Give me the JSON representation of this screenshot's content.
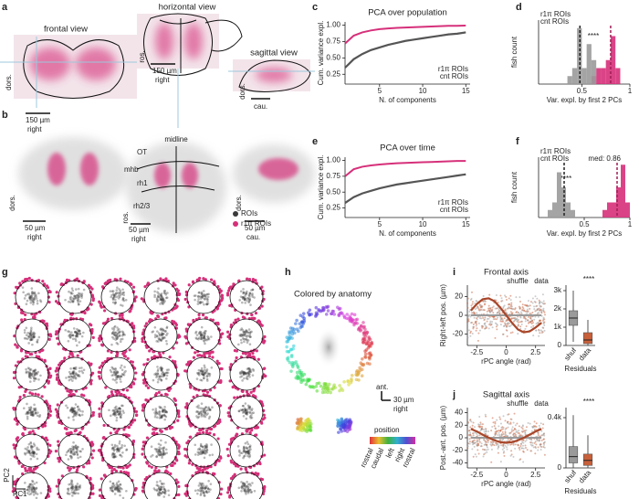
{
  "panel_letters": [
    "a",
    "b",
    "c",
    "d",
    "e",
    "f",
    "g",
    "h",
    "i",
    "j"
  ],
  "panel_a": {
    "frontal": {
      "title": "frontal view",
      "vertical": "dors.",
      "scale": "150 µm",
      "horizontal": "right"
    },
    "horizontal": {
      "title": "horizontal view",
      "vertical": "ros.",
      "scale": "150 µm",
      "horizontal": "right"
    },
    "sagittal": {
      "title": "sagittal view",
      "vertical": "dors.",
      "horizontal": "cau."
    }
  },
  "panel_b": {
    "frontal": {
      "vertical": "dors.",
      "scale": "50 µm",
      "horizontal": "right"
    },
    "horizontal": {
      "labels": [
        "OT",
        "midline",
        "mhb",
        "rh1",
        "rh2/3"
      ],
      "vertical": "ros.",
      "scale": "50 µm",
      "horizontal": "right"
    },
    "sagittal": {
      "vertical": "dors.",
      "scale": "50 µm",
      "horizontal": "cau."
    },
    "legend": [
      {
        "name": "ROIs",
        "color": "#3a3a3a"
      },
      {
        "name": "r1π ROIs",
        "color": "#d6307a"
      }
    ]
  },
  "panel_g": {
    "x_label": "PC1",
    "y_label": "PC2"
  },
  "panel_h": {
    "title": "Colored by anatomy",
    "vertical": "ant.",
    "scale": "30 µm",
    "horizontal": "right",
    "colorbar_title": "position",
    "colorbar_labels": [
      "rostral",
      "caudal",
      "left",
      "right",
      "rostral"
    ]
  },
  "chart_data": [
    {
      "type": "line",
      "title": "PCA over population",
      "xlabel": "N. of components",
      "ylabel": "Cum. variance expl.",
      "x": [
        1,
        2,
        3,
        4,
        5,
        6,
        7,
        8,
        9,
        10,
        11,
        12,
        13,
        14,
        15
      ],
      "xlim": [
        1,
        15.5
      ],
      "xticks": [
        5,
        10,
        15
      ],
      "ylim": [
        0.1,
        1.05
      ],
      "yticks": [
        {
          "value": 0.25,
          "label": "0.25"
        },
        {
          "value": 0.5,
          "label": "0.50"
        },
        {
          "value": 0.75,
          "label": "0.75"
        },
        {
          "value": 1,
          "label": "1.00"
        }
      ],
      "legend": "lower right",
      "series": [
        {
          "name": "r1π ROIs",
          "color": "#d6307a",
          "values": [
            0.72,
            0.84,
            0.89,
            0.92,
            0.94,
            0.95,
            0.96,
            0.965,
            0.97,
            0.975,
            0.98,
            0.985,
            0.99,
            0.99,
            0.995
          ]
        },
        {
          "name": "cnt ROIs",
          "color": "#555555",
          "values": [
            0.35,
            0.48,
            0.56,
            0.62,
            0.66,
            0.7,
            0.73,
            0.76,
            0.78,
            0.8,
            0.82,
            0.84,
            0.86,
            0.87,
            0.89
          ]
        }
      ]
    },
    {
      "type": "histogram",
      "xlabel": "Var. expl. by first 2 PCs",
      "ylabel": "fish count",
      "annotation": "****",
      "bins": [
        0.25,
        0.3,
        0.35,
        0.4,
        0.45,
        0.5,
        0.55,
        0.6,
        0.65,
        0.7,
        0.75,
        0.8,
        0.85,
        0.9,
        0.95
      ],
      "xlim": [
        0.05,
        1.0
      ],
      "xticks": [
        0.5,
        1
      ],
      "ylim": [
        0,
        8
      ],
      "legend": "upper left",
      "series": [
        {
          "name": "r1π ROIs",
          "color": "#d6307a",
          "median": 0.8,
          "values": [
            0,
            0,
            0,
            0,
            0,
            0,
            0,
            1,
            2,
            2,
            3,
            6,
            2,
            0
          ]
        },
        {
          "name": "cnt ROIs",
          "color": "#9a9a9a",
          "median": 0.48,
          "values": [
            0,
            0,
            1,
            2,
            7,
            2,
            5,
            3,
            0,
            0,
            0,
            0,
            0,
            0
          ]
        }
      ]
    },
    {
      "type": "line",
      "title": "PCA over time",
      "xlabel": "N. of components",
      "ylabel": "Cum. variance expl.",
      "x": [
        1,
        2,
        3,
        4,
        5,
        6,
        7,
        8,
        9,
        10,
        11,
        12,
        13,
        14,
        15
      ],
      "xlim": [
        1,
        15.5
      ],
      "xticks": [
        5,
        10,
        15
      ],
      "ylim": [
        0.1,
        1.05
      ],
      "yticks": [
        {
          "value": 0.25,
          "label": "0.25"
        },
        {
          "value": 0.5,
          "label": "0.50"
        },
        {
          "value": 0.75,
          "label": "0.75"
        },
        {
          "value": 1,
          "label": "1.00"
        }
      ],
      "legend": "lower right",
      "series": [
        {
          "name": "r1π ROIs",
          "color": "#d6307a",
          "values": [
            0.75,
            0.86,
            0.9,
            0.92,
            0.935,
            0.945,
            0.955,
            0.96,
            0.965,
            0.97,
            0.975,
            0.98,
            0.985,
            0.99,
            0.99
          ]
        },
        {
          "name": "cnt ROIs",
          "color": "#555555",
          "values": [
            0.33,
            0.42,
            0.48,
            0.52,
            0.56,
            0.59,
            0.62,
            0.64,
            0.66,
            0.68,
            0.7,
            0.72,
            0.74,
            0.76,
            0.78
          ]
        }
      ]
    },
    {
      "type": "histogram",
      "xlabel": "Var. expl. by first 2 PCs",
      "ylabel": "fish count",
      "annotation": "****",
      "bins": [
        0.1,
        0.15,
        0.2,
        0.25,
        0.3,
        0.35,
        0.4,
        0.45,
        0.5,
        0.55,
        0.6,
        0.65,
        0.7,
        0.75,
        0.8,
        0.85,
        0.9,
        0.95,
        1.0
      ],
      "xlim": [
        0,
        1
      ],
      "xticks": [
        0.5,
        1
      ],
      "ylim": [
        0,
        8
      ],
      "legend": "upper left",
      "series": [
        {
          "name": "r1π ROIs",
          "color": "#d6307a",
          "median": 0.86,
          "median_label": "med: 0.86",
          "values": [
            0,
            0,
            0,
            0,
            0,
            0,
            0,
            0,
            0,
            0,
            0,
            0,
            1,
            2,
            2,
            4,
            7,
            2
          ]
        },
        {
          "name": "cnt ROIs",
          "color": "#9a9a9a",
          "median": 0.28,
          "values": [
            1,
            2,
            6,
            4,
            2,
            1,
            0,
            0,
            0,
            0,
            0,
            0,
            0,
            0,
            0,
            0,
            0,
            0
          ]
        }
      ]
    },
    {
      "type": "line",
      "title": "Frontal axis",
      "xlabel": "rPC angle (rad)",
      "ylabel": "Right-left pos. (µm)",
      "x": [
        -3,
        -2.5,
        -2,
        -1.5,
        -1,
        -0.5,
        0,
        0.5,
        1,
        1.5,
        2,
        2.5,
        3
      ],
      "xlim": [
        -3.3,
        3.3
      ],
      "xticks": [
        -2.5,
        0,
        2.5
      ],
      "ylim": [
        -32,
        32
      ],
      "yticks": [
        -20,
        0,
        20
      ],
      "legend": "top",
      "series": [
        {
          "name": "shuffle",
          "color": "#9a9a9a",
          "values": [
            0,
            0,
            0,
            0,
            0,
            0,
            0,
            0,
            0,
            0,
            0,
            0,
            0
          ]
        },
        {
          "name": "data",
          "color": "#a8462a",
          "values": [
            5,
            12,
            17,
            18,
            15,
            8,
            0,
            -8,
            -15,
            -18,
            -17,
            -13,
            -8
          ]
        }
      ]
    },
    {
      "type": "box",
      "annotation": "****",
      "xlabel": "Residuals",
      "categories": [
        "shuf",
        "data"
      ],
      "colors": [
        "#9a9a9a",
        "#c8603a"
      ],
      "ylim": [
        0,
        3300
      ],
      "yticks": [
        0,
        {
          "value": 1000,
          "label": "1k"
        },
        {
          "value": 2000,
          "label": "2k"
        },
        {
          "value": 3000,
          "label": "3k"
        }
      ],
      "whisker_low": [
        200,
        0
      ],
      "q1": [
        1100,
        100
      ],
      "median": [
        1500,
        300
      ],
      "q3": [
        1900,
        700
      ],
      "whisker_high": [
        3000,
        1400
      ]
    },
    {
      "type": "line",
      "title": "Sagittal axis",
      "xlabel": "rPC angle (rad)",
      "ylabel": "Post.-ant. pos. (µm)",
      "x": [
        -3,
        -2.5,
        -2,
        -1.5,
        -1,
        -0.5,
        0,
        0.5,
        1,
        1.5,
        2,
        2.5,
        3
      ],
      "xlim": [
        -3.3,
        3.3
      ],
      "xticks": [
        -2.5,
        0,
        2.5
      ],
      "ylim": [
        -48,
        48
      ],
      "yticks": [
        -40,
        -20,
        0,
        20,
        40
      ],
      "legend": "top",
      "series": [
        {
          "name": "shuffle",
          "color": "#9a9a9a",
          "values": [
            0,
            0,
            0,
            0,
            0,
            0,
            0,
            0,
            0,
            0,
            0,
            0,
            0
          ]
        },
        {
          "name": "data",
          "color": "#a8462a",
          "values": [
            14,
            10,
            5,
            0,
            -4,
            -7,
            -8,
            -7,
            -4,
            0,
            5,
            10,
            14
          ]
        }
      ]
    },
    {
      "type": "box",
      "annotation": "****",
      "xlabel": "Residuals",
      "categories": [
        "shuf",
        "data"
      ],
      "colors": [
        "#9a9a9a",
        "#c8603a"
      ],
      "ylim": [
        0,
        480
      ],
      "yticks": [
        0,
        {
          "value": 400,
          "label": "0.4k"
        }
      ],
      "whisker_low": [
        0,
        0
      ],
      "q1": [
        40,
        20
      ],
      "median": [
        90,
        60
      ],
      "q3": [
        170,
        110
      ],
      "whisker_high": [
        420,
        260
      ]
    }
  ]
}
